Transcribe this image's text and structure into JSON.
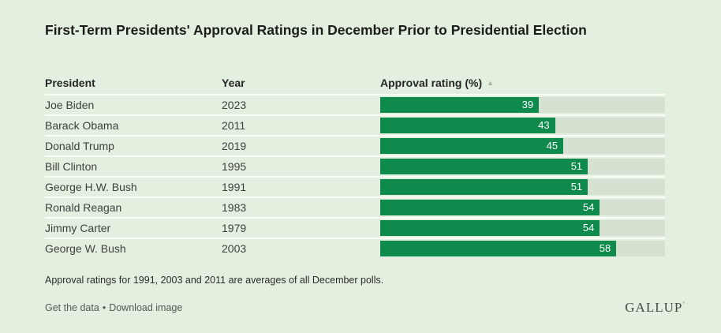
{
  "title": "First-Term Presidents' Approval Ratings in December Prior to Presidential Election",
  "table": {
    "columns": [
      {
        "label": "President"
      },
      {
        "label": "Year"
      },
      {
        "label": "Approval rating (%)",
        "sort_indicator": "▲"
      }
    ],
    "rows": [
      {
        "president": "Joe Biden",
        "year": "2023",
        "rating": 39
      },
      {
        "president": "Barack Obama",
        "year": "2011",
        "rating": 43
      },
      {
        "president": "Donald Trump",
        "year": "2019",
        "rating": 45
      },
      {
        "president": "Bill Clinton",
        "year": "1995",
        "rating": 51
      },
      {
        "president": "George H.W. Bush",
        "year": "1991",
        "rating": 51
      },
      {
        "president": "Ronald Reagan",
        "year": "1983",
        "rating": 54
      },
      {
        "president": "Jimmy Carter",
        "year": "1979",
        "rating": 54
      },
      {
        "president": "George W. Bush",
        "year": "2003",
        "rating": 58
      }
    ]
  },
  "chart_data": {
    "type": "bar",
    "orientation": "horizontal",
    "title": "First-Term Presidents' Approval Ratings in December Prior to Presidential Election",
    "categories": [
      "Joe Biden",
      "Barack Obama",
      "Donald Trump",
      "Bill Clinton",
      "George H.W. Bush",
      "Ronald Reagan",
      "Jimmy Carter",
      "George W. Bush"
    ],
    "years": [
      "2023",
      "2011",
      "2019",
      "1995",
      "1991",
      "1983",
      "1979",
      "2003"
    ],
    "values": [
      39,
      43,
      45,
      51,
      51,
      54,
      54,
      58
    ],
    "xlabel": "Approval rating (%)",
    "xlim": [
      0,
      70
    ],
    "sort_order": "ascending",
    "value_labels": "inside-end",
    "grid": false,
    "legend": false
  },
  "footnote": "Approval ratings for 1991, 2003 and 2011 are averages of all December polls.",
  "footer": {
    "get_data_label": "Get the data",
    "separator": "•",
    "download_label": "Download image",
    "brand": "GALLUP",
    "brand_mark": "’"
  },
  "colors": {
    "background": "#e3f0e0",
    "bar": "#0e8a4d",
    "bar_track": "#d6e1d2",
    "row_divider": "#fafdf8",
    "title_text": "#1c1c1a",
    "body_text": "#3e3e3e",
    "bar_value_text": "#ffffff",
    "sort_indicator": "#a9b5a7",
    "footer_link": "#565656",
    "brand_text": "#3e4b43"
  }
}
